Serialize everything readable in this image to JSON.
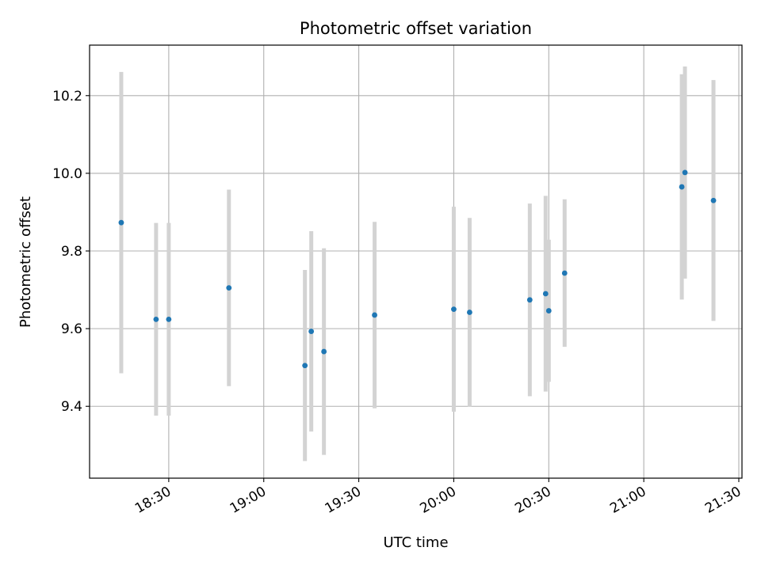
{
  "chart_data": {
    "type": "scatter",
    "title": "Photometric offset variation",
    "xlabel": "UTC time",
    "ylabel": "Photometric offset",
    "grid": true,
    "x_ticks": [
      "18:30",
      "19:00",
      "19:30",
      "20:00",
      "20:30",
      "21:00",
      "21:30"
    ],
    "y_ticks": [
      "9.4",
      "9.6",
      "9.8",
      "10.0",
      "10.2"
    ],
    "xlim": [
      "18:05",
      "21:31"
    ],
    "ylim": [
      9.215,
      10.33
    ],
    "marker_color": "#1f77b4",
    "errorbar_color": "#d3d3d3",
    "points": [
      {
        "x": "18:15",
        "y": 9.873,
        "err": 0.388
      },
      {
        "x": "18:26",
        "y": 9.624,
        "err": 0.248
      },
      {
        "x": "18:30",
        "y": 9.624,
        "err": 0.248
      },
      {
        "x": "18:49",
        "y": 9.705,
        "err": 0.253
      },
      {
        "x": "19:13",
        "y": 9.505,
        "err": 0.246
      },
      {
        "x": "19:15",
        "y": 9.593,
        "err": 0.258
      },
      {
        "x": "19:19",
        "y": 9.541,
        "err": 0.266
      },
      {
        "x": "19:35",
        "y": 9.635,
        "err": 0.24
      },
      {
        "x": "20:00",
        "y": 9.65,
        "err": 0.264
      },
      {
        "x": "20:05",
        "y": 9.642,
        "err": 0.243
      },
      {
        "x": "20:24",
        "y": 9.674,
        "err": 0.248
      },
      {
        "x": "20:29",
        "y": 9.69,
        "err": 0.252
      },
      {
        "x": "20:30",
        "y": 9.646,
        "err": 0.183
      },
      {
        "x": "20:35",
        "y": 9.743,
        "err": 0.19
      },
      {
        "x": "21:12",
        "y": 9.965,
        "err": 0.29
      },
      {
        "x": "21:13",
        "y": 10.002,
        "err": 0.273
      },
      {
        "x": "21:22",
        "y": 9.93,
        "err": 0.31
      }
    ]
  }
}
